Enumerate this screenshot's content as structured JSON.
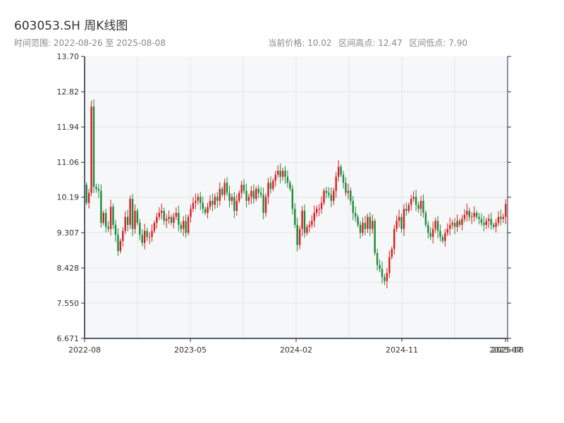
{
  "header": {
    "title": "603053.SH 周K线图",
    "range_label": "时间范围: 2022-08-26 至 2025-08-08",
    "current_price": "当前价格: 10.02",
    "range_high": "区间高点: 12.47",
    "range_low": "区间低点: 7.90"
  },
  "colors": {
    "up": "#d71d20",
    "down": "#1b8a3a",
    "plot_bg": "#f6f7f9",
    "grid": "#e3e5e8",
    "axis": "#1f2d3d"
  },
  "chart_data": {
    "type": "candlestick",
    "title": "603053.SH 周K线图",
    "ylim": [
      6.671,
      13.7
    ],
    "y_ticks": [
      "13.70",
      "12.82",
      "11.94",
      "11.06",
      "10.19",
      "9.307",
      "8.428",
      "7.550",
      "6.671"
    ],
    "x_tick_labels": [
      "2022-08",
      "2023-05",
      "2024-02",
      "2024-11",
      "2025-07",
      "2025-08"
    ],
    "x_range": [
      "2022-08-26",
      "2025-08-08"
    ],
    "grid": true,
    "candles_close": [
      10.05,
      10.3,
      12.45,
      10.45,
      10.4,
      10.35,
      9.55,
      9.8,
      9.45,
      9.4,
      9.95,
      9.5,
      9.25,
      8.85,
      9.1,
      9.35,
      9.7,
      9.5,
      10.15,
      9.4,
      9.85,
      9.55,
      9.25,
      9.05,
      9.35,
      9.2,
      9.2,
      9.35,
      9.55,
      9.7,
      9.8,
      9.85,
      9.6,
      9.65,
      9.7,
      9.55,
      9.7,
      9.8,
      9.5,
      9.4,
      9.6,
      9.3,
      9.7,
      9.9,
      10.05,
      10.1,
      10.2,
      10.05,
      9.9,
      9.8,
      9.95,
      10.1,
      10.0,
      10.2,
      10.1,
      10.4,
      10.25,
      10.55,
      10.3,
      10.1,
      10.2,
      9.85,
      10.1,
      10.3,
      10.5,
      10.35,
      10.1,
      10.2,
      10.35,
      10.15,
      10.4,
      10.3,
      10.25,
      9.8,
      10.2,
      10.55,
      10.4,
      10.6,
      10.75,
      10.85,
      10.7,
      10.85,
      10.7,
      10.55,
      10.4,
      9.9,
      9.5,
      9.0,
      9.4,
      9.85,
      9.3,
      9.45,
      9.5,
      9.6,
      9.8,
      9.9,
      9.9,
      10.05,
      10.35,
      10.3,
      10.25,
      10.1,
      10.35,
      10.7,
      10.95,
      10.75,
      10.55,
      10.3,
      10.35,
      10.1,
      9.8,
      9.7,
      9.5,
      9.3,
      9.55,
      9.4,
      9.7,
      9.4,
      9.6,
      8.8,
      8.5,
      8.4,
      8.2,
      8.1,
      8.3,
      8.7,
      8.9,
      9.4,
      9.6,
      9.7,
      9.4,
      9.9,
      9.85,
      10.0,
      10.15,
      10.2,
      10.0,
      9.9,
      10.1,
      9.8,
      9.5,
      9.3,
      9.2,
      9.4,
      9.6,
      9.35,
      9.2,
      9.1,
      9.3,
      9.4,
      9.5,
      9.55,
      9.45,
      9.6,
      9.5,
      9.65,
      9.75,
      9.85,
      9.7,
      9.7,
      9.8,
      9.7,
      9.65,
      9.55,
      9.5,
      9.6,
      9.65,
      9.5,
      9.45,
      9.55,
      9.7,
      9.65,
      9.7,
      10.02
    ]
  }
}
